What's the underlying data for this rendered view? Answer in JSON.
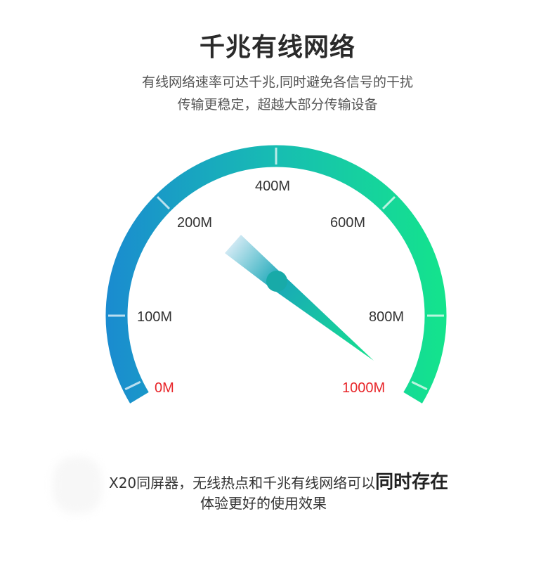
{
  "header": {
    "title": "千兆有线网络",
    "subtitle_line1": "有线网络速率可达千兆,同时避免各信号的干扰",
    "subtitle_line2": "传输更稳定，超越大部分传输设备"
  },
  "gauge": {
    "labels": [
      "0M",
      "100M",
      "200M",
      "400M",
      "600M",
      "800M",
      "1000M"
    ],
    "colors": {
      "start": "#1a8bd0",
      "end": "#14e48c",
      "endpoint_label": "#e8262a",
      "label": "#333333"
    }
  },
  "footer": {
    "line1_prefix": "X20同屏器，无线热点和千兆有线网络可以",
    "line1_emphasis": "同时存在",
    "line2": "体验更好的使用效果"
  }
}
